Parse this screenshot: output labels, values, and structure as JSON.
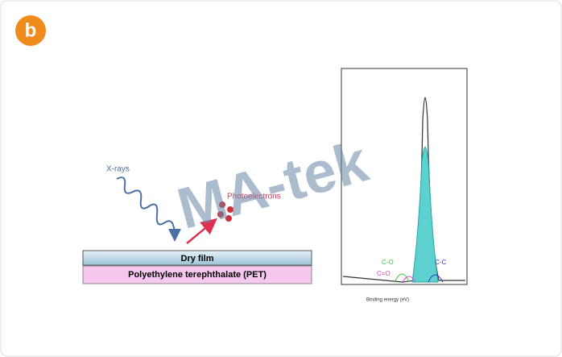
{
  "badge": "b",
  "diagram": {
    "xray_label": "X-rays",
    "photoelectron_label": "Photoelectrons",
    "layers": [
      "Dry film",
      "Polyethylene terephthalate (PET)"
    ]
  },
  "spectrum": {
    "peak_labels": [
      "C-O",
      "C=O",
      "C-C"
    ],
    "xlabel": "Binding energy (eV)"
  },
  "watermark": "MA-tek"
}
